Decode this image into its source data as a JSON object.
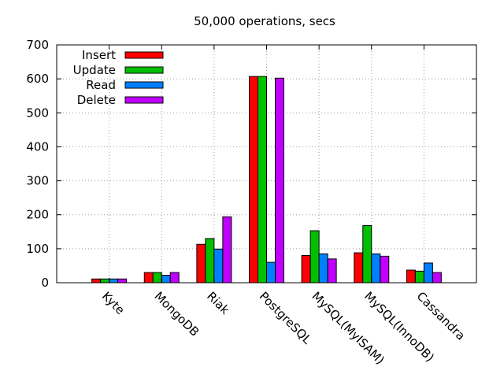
{
  "chart_data": {
    "type": "bar",
    "title": "50,000 operations, secs",
    "xlabel": "",
    "ylabel": "",
    "categories": [
      "Kyte",
      "MongoDB",
      "Riak",
      "PostgreSQL",
      "MySQL(MyISAM)",
      "MySQL(InnoDB)",
      "Cassandra"
    ],
    "ylim": [
      0,
      700
    ],
    "yticks": [
      0,
      100,
      200,
      300,
      400,
      500,
      600,
      700
    ],
    "grid": true,
    "legend_position": "top-left",
    "series": [
      {
        "name": "Insert",
        "color": "#ff0000",
        "values": [
          11,
          30,
          113,
          607,
          80,
          88,
          37
        ]
      },
      {
        "name": "Update",
        "color": "#00c000",
        "values": [
          11,
          30,
          130,
          607,
          153,
          168,
          34
        ]
      },
      {
        "name": "Read",
        "color": "#0080ff",
        "values": [
          11,
          22,
          99,
          60,
          85,
          85,
          58
        ]
      },
      {
        "name": "Delete",
        "color": "#c000ff",
        "values": [
          11,
          30,
          194,
          602,
          70,
          78,
          30
        ]
      }
    ]
  }
}
